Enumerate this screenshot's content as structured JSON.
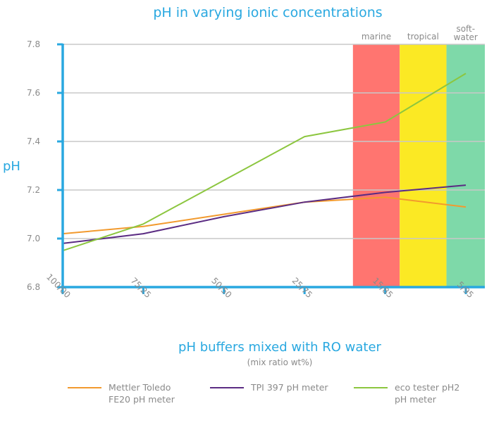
{
  "chart_data": {
    "type": "line",
    "title": "pH in varying ionic concentrations",
    "xlabel": "pH buffers mixed with RO water",
    "xlabel_sub": "(mix ratio wt%)",
    "ylabel": "pH",
    "categories": [
      "100/00",
      "75/25",
      "50/50",
      "25/75",
      "15/85",
      "5/95"
    ],
    "x_positions": [
      0,
      1,
      2,
      3,
      4,
      5
    ],
    "ylim": [
      6.8,
      7.8
    ],
    "yticks": [
      "6.8",
      "7.0",
      "7.2",
      "7.4",
      "7.6",
      "7.8"
    ],
    "ytick_values": [
      6.8,
      7.0,
      7.2,
      7.4,
      7.6,
      7.8
    ],
    "grid": true,
    "legend_position": "bottom",
    "bands": [
      {
        "label": "marine",
        "x_start": 3.6,
        "x_end": 4.18,
        "color": "#ff7570"
      },
      {
        "label": "tropical",
        "x_start": 4.18,
        "x_end": 4.76,
        "color": "#fbe924"
      },
      {
        "label": "soft-water",
        "x_start": 4.76,
        "x_end": 5.24,
        "color": "#7ed9a9"
      }
    ],
    "series": [
      {
        "name": "Mettler Toledo FE20 pH meter",
        "legend_lines": [
          "Mettler Toledo",
          "FE20 pH meter"
        ],
        "color": "#f29a2e",
        "x": [
          0,
          1,
          2,
          3,
          4,
          5
        ],
        "values": [
          7.02,
          7.05,
          7.1,
          7.15,
          7.17,
          7.13
        ]
      },
      {
        "name": "TPI 397 pH meter",
        "legend_lines": [
          "TPI 397 pH meter"
        ],
        "color": "#5b2c83",
        "x": [
          0,
          1,
          2,
          3,
          4,
          5
        ],
        "values": [
          6.98,
          7.02,
          7.09,
          7.15,
          7.19,
          7.22
        ]
      },
      {
        "name": "eco tester pH2 pH meter",
        "legend_lines": [
          "eco tester pH2",
          "pH meter"
        ],
        "color": "#8cc63f",
        "x": [
          0,
          1,
          2,
          3,
          4,
          5
        ],
        "values": [
          6.95,
          7.06,
          7.24,
          7.42,
          7.48,
          7.68
        ]
      }
    ],
    "axis_color": "#29a8e0",
    "grid_color": "#c8c8c8"
  }
}
